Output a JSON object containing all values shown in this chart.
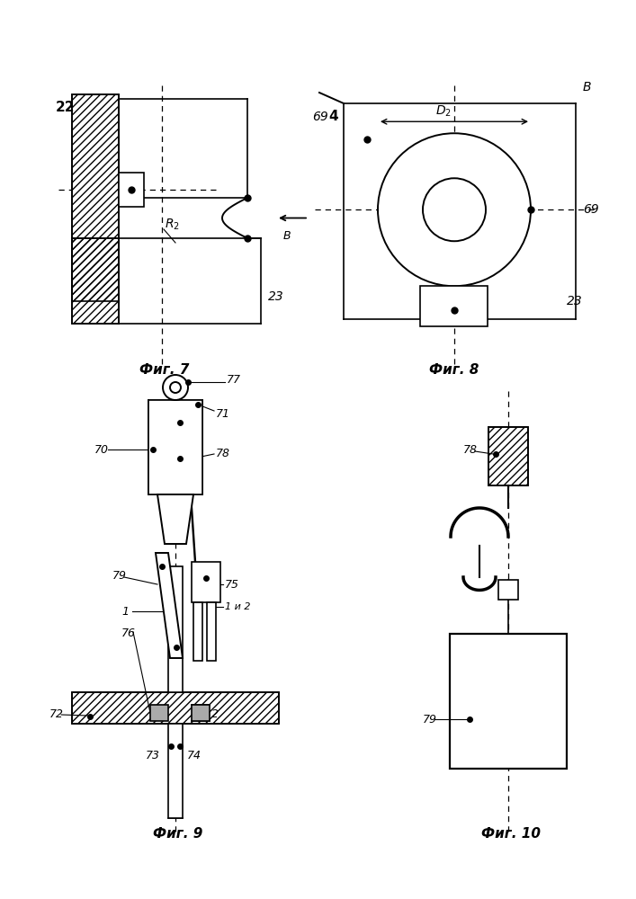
{
  "fig7_label": "Фиг. 7",
  "fig8_label": "Фиг. 8",
  "fig9_label": "Фиг. 9",
  "fig10_label": "Фиг. 10",
  "bg_color": "#ffffff"
}
